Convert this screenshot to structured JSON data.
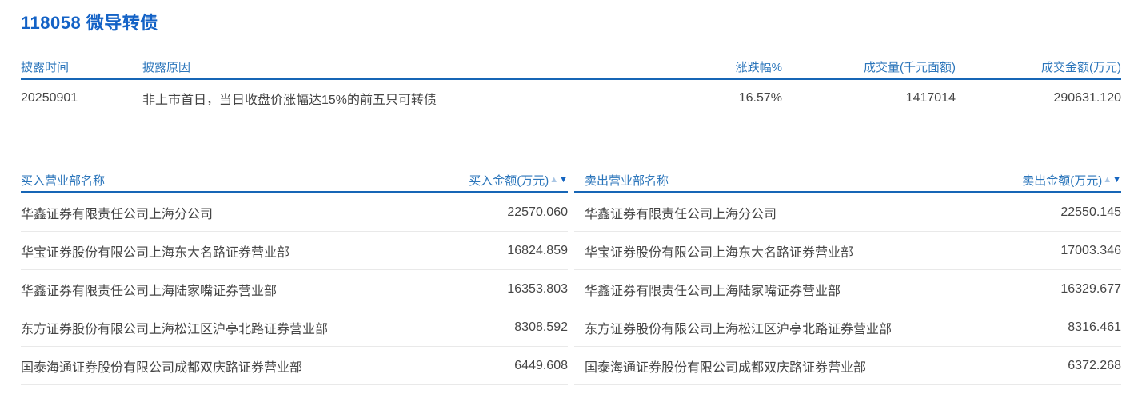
{
  "page": {
    "title": "118058 微导转债"
  },
  "colors": {
    "title_blue": "#1362c6",
    "header_blue": "#2c76bb",
    "rule_blue": "#1766b6",
    "body_text": "#454545",
    "divider": "#e9e9e9",
    "sort_asc_inactive": "#aac6e4",
    "sort_desc_active": "#1565c0"
  },
  "disclosure_table": {
    "columns": [
      "披露时间",
      "披露原因",
      "涨跌幅%",
      "成交量(千元面额)",
      "成交金额(万元)"
    ],
    "row": {
      "date": "20250901",
      "reason": "非上市首日，当日收盘价涨幅达15%的前五只可转债",
      "change_pct": "16.57%",
      "volume": "1417014",
      "amount": "290631.120"
    }
  },
  "sort_icons": {
    "asc": "▲",
    "desc": "▼"
  },
  "buy_table": {
    "name_header": "买入营业部名称",
    "amount_header": "买入金额(万元)",
    "rows": [
      {
        "name": "华鑫证券有限责任公司上海分公司",
        "amount": "22570.060"
      },
      {
        "name": "华宝证券股份有限公司上海东大名路证券营业部",
        "amount": "16824.859"
      },
      {
        "name": "华鑫证券有限责任公司上海陆家嘴证券营业部",
        "amount": "16353.803"
      },
      {
        "name": "东方证券股份有限公司上海松江区沪亭北路证券营业部",
        "amount": "8308.592"
      },
      {
        "name": "国泰海通证券股份有限公司成都双庆路证券营业部",
        "amount": "6449.608"
      }
    ]
  },
  "sell_table": {
    "name_header": "卖出营业部名称",
    "amount_header": "卖出金额(万元)",
    "rows": [
      {
        "name": "华鑫证券有限责任公司上海分公司",
        "amount": "22550.145"
      },
      {
        "name": "华宝证券股份有限公司上海东大名路证券营业部",
        "amount": "17003.346"
      },
      {
        "name": "华鑫证券有限责任公司上海陆家嘴证券营业部",
        "amount": "16329.677"
      },
      {
        "name": "东方证券股份有限公司上海松江区沪亭北路证券营业部",
        "amount": "8316.461"
      },
      {
        "name": "国泰海通证券股份有限公司成都双庆路证券营业部",
        "amount": "6372.268"
      }
    ]
  }
}
